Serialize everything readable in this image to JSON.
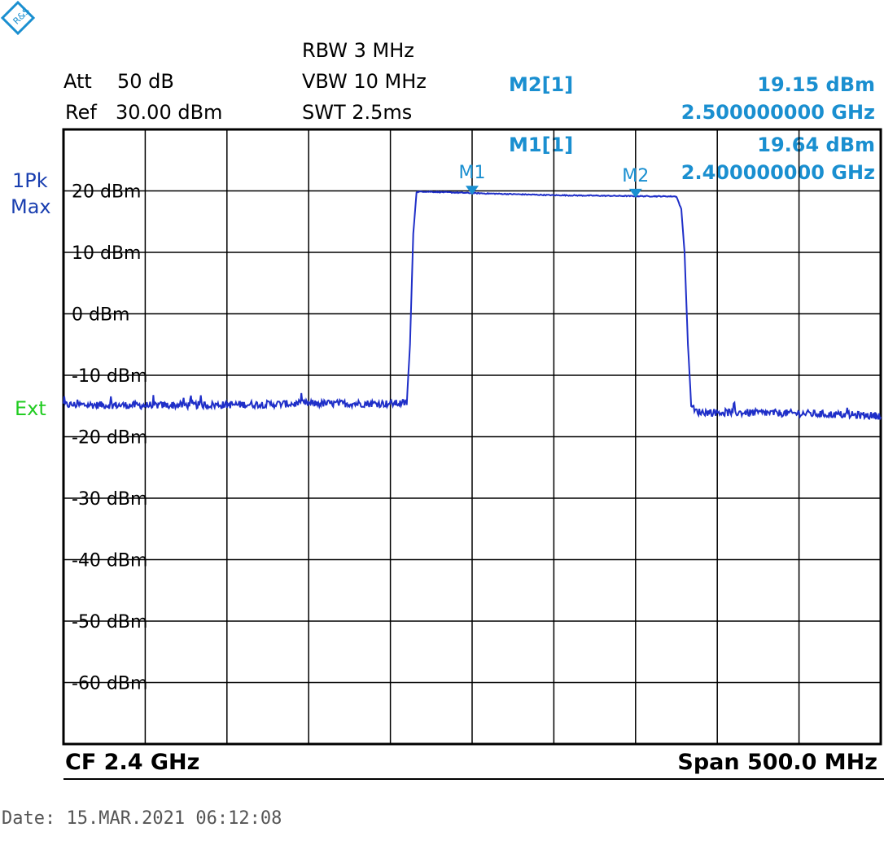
{
  "header": {
    "att_label": "Att",
    "att_value": "50 dB",
    "ref_label": "Ref",
    "ref_value": "30.00 dBm",
    "rbw": "RBW 3 MHz",
    "vbw": "VBW 10 MHz",
    "swt": "SWT 2.5ms"
  },
  "markers": {
    "m2_label": "M2[1]",
    "m2_level": "19.15 dBm",
    "m2_freq": "2.500000000 GHz",
    "m1_label": "M1[1]",
    "m1_level": "19.64 dBm",
    "m1_freq": "2.400000000 GHz"
  },
  "side": {
    "detector_line1": "1Pk",
    "detector_line2": "Max",
    "trigger": "Ext"
  },
  "footer": {
    "cf": "CF 2.4 GHz",
    "span": "Span 500.0 MHz"
  },
  "date_line": "Date: 15.MAR.2021   06:12:08",
  "colors": {
    "trace": "#1f2fc8",
    "marker": "#1a8fd0",
    "grid": "#000000",
    "ext": "#22cc22",
    "detector": "#1a3fb0"
  },
  "chart_data": {
    "type": "line",
    "x_center_ghz": 2.4,
    "x_span_mhz": 500,
    "xlim_ghz": [
      2.15,
      2.65
    ],
    "ylim_dbm": [
      -70,
      30
    ],
    "x_divisions": 10,
    "y_divisions": 10,
    "y_tick_labels": [
      "20 dBm",
      "10 dBm",
      "0 dBm",
      "-10 dBm",
      "-20 dBm",
      "-30 dBm",
      "-40 dBm",
      "-50 dBm",
      "-60 dBm"
    ],
    "y_tick_values": [
      20,
      10,
      0,
      -10,
      -20,
      -30,
      -40,
      -50,
      -60
    ],
    "grid": true,
    "series": [
      {
        "x": [
          2.15,
          2.2,
          2.25,
          2.3,
          2.35,
          2.36,
          2.362,
          2.364,
          2.366,
          2.37,
          2.4,
          2.45,
          2.5,
          2.525,
          2.528,
          2.53,
          2.532,
          2.534,
          2.536,
          2.54,
          2.6,
          2.65
        ],
        "y": [
          -14.8,
          -14.9,
          -14.8,
          -14.6,
          -14.6,
          -14.5,
          -5,
          13,
          19.8,
          19.9,
          19.64,
          19.3,
          19.15,
          19.1,
          17,
          10,
          -5,
          -14.5,
          -15.8,
          -16,
          -16.2,
          -16.6
        ]
      }
    ],
    "markers": [
      {
        "name": "M1",
        "x": 2.4,
        "y": 19.64
      },
      {
        "name": "M2",
        "x": 2.5,
        "y": 19.15
      }
    ]
  }
}
